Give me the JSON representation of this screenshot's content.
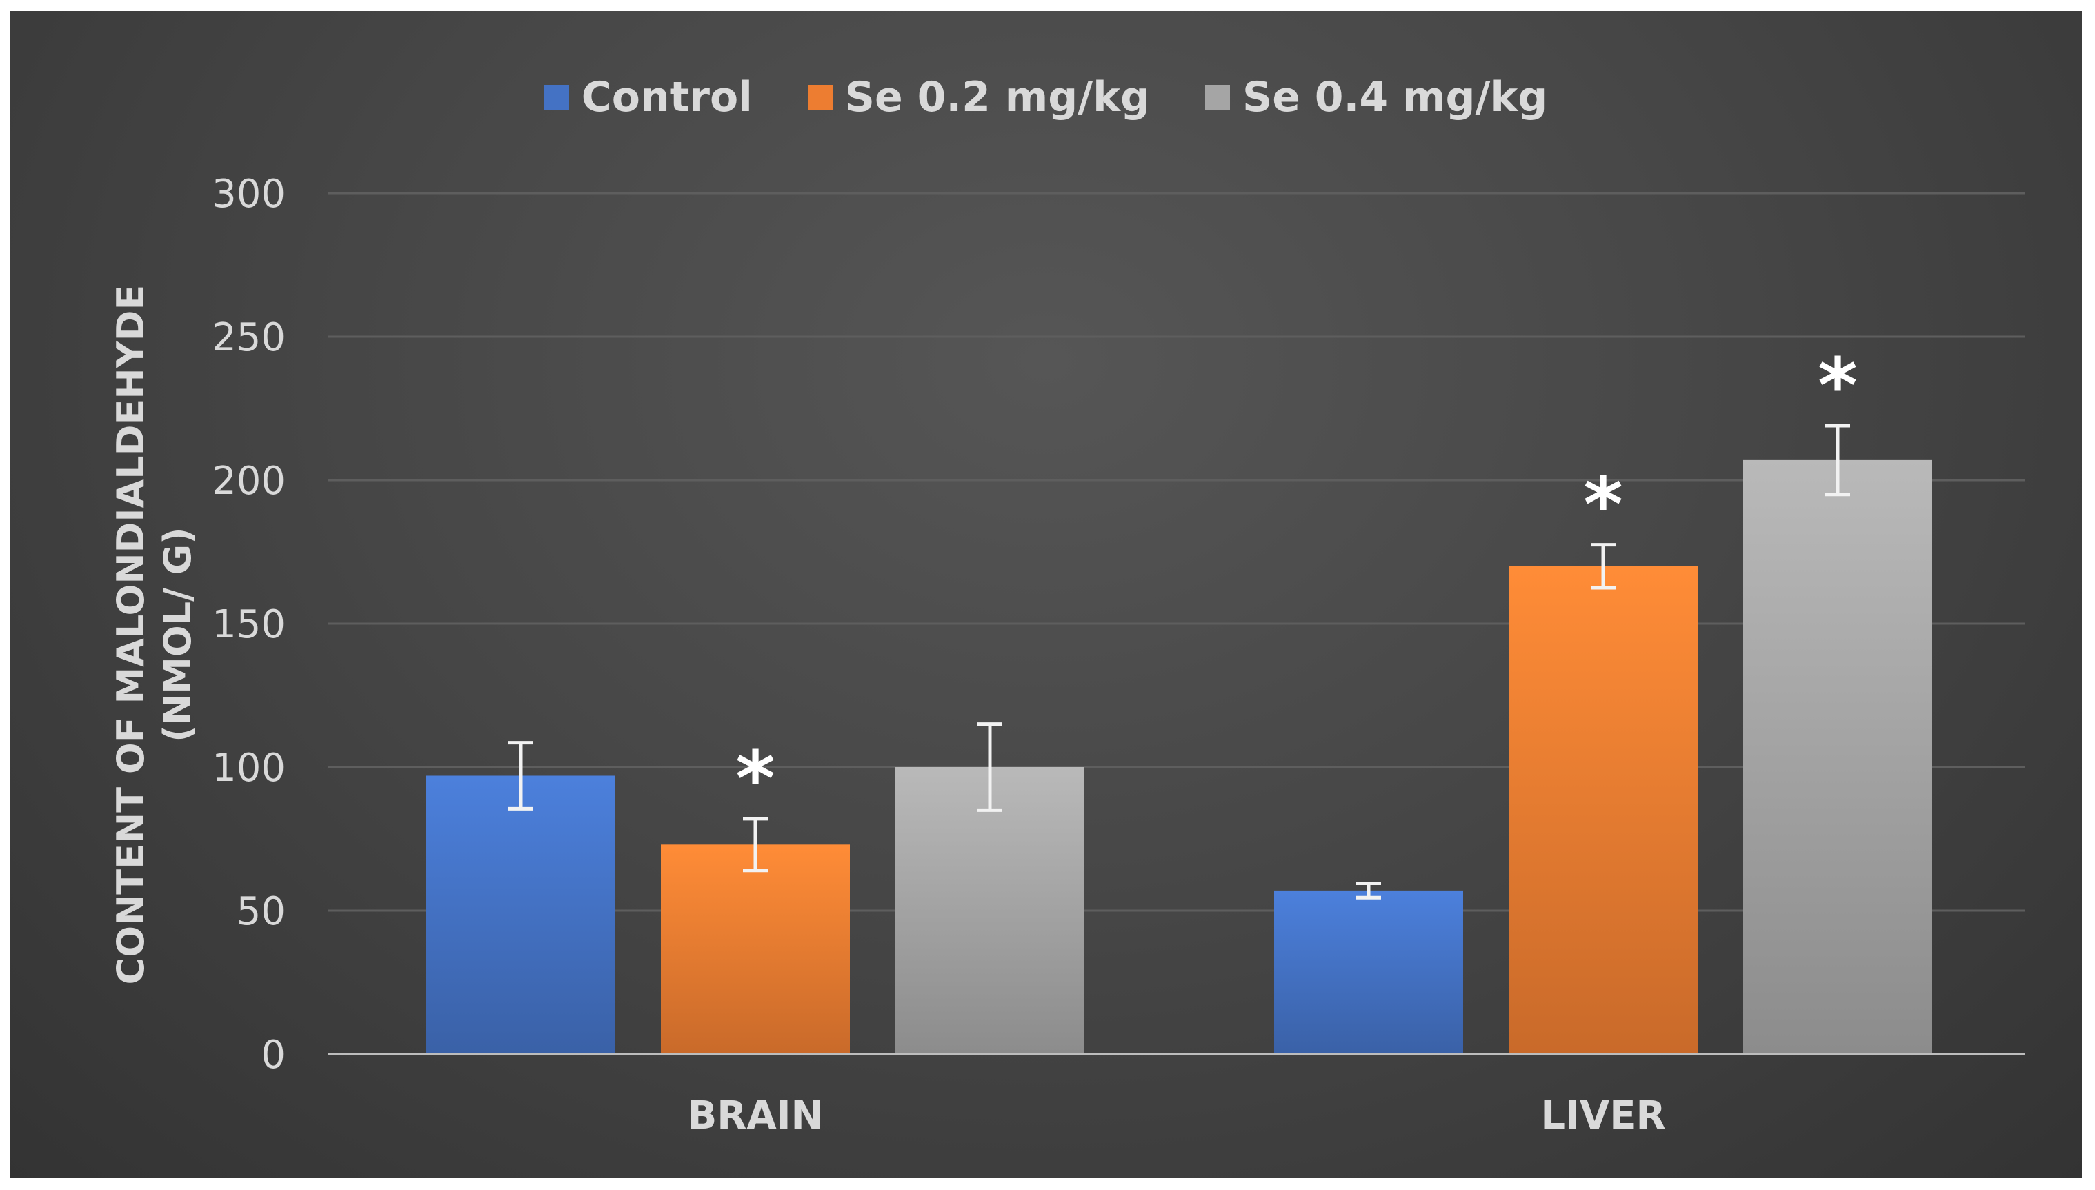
{
  "chart_data": {
    "type": "bar",
    "title": "",
    "xlabel": "",
    "ylabel_line1": "CONTENT OF MALONDIALDEHYDE",
    "ylabel_line2": "(NMOL/ G)",
    "ylim": [
      0,
      300
    ],
    "yticks": [
      0,
      50,
      100,
      150,
      200,
      250,
      300
    ],
    "categories": [
      "BRAIN",
      "LIVER"
    ],
    "series": [
      {
        "name": "Control",
        "color": "#4472c4",
        "values": [
          97,
          57
        ],
        "errors": [
          11.5,
          2.5
        ],
        "significant": [
          false,
          false
        ]
      },
      {
        "name": "Se 0.2 mg/kg",
        "color": "#ed7d31",
        "values": [
          73,
          170
        ],
        "errors": [
          9,
          7.5
        ],
        "significant": [
          true,
          true
        ]
      },
      {
        "name": "Se 0.4 mg/kg",
        "color": "#a5a5a5",
        "values": [
          100,
          207
        ],
        "errors": [
          15,
          12
        ],
        "significant": [
          false,
          true
        ]
      }
    ],
    "significance_marker": "*",
    "legend_position": "top-center",
    "grid": true
  }
}
